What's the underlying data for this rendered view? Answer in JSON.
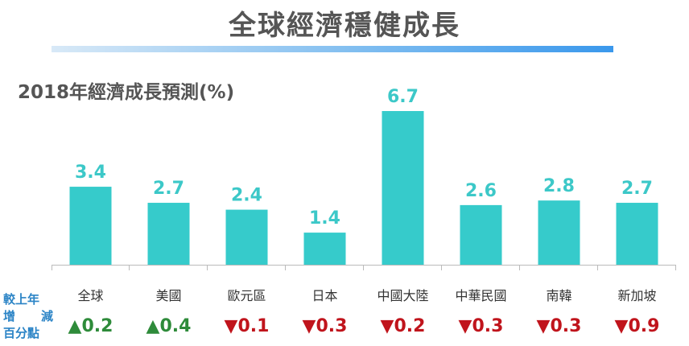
{
  "title": "全球經濟穩健成長",
  "side_label": {
    "line1": "較上年",
    "line2a": "增",
    "line2b": "減",
    "line3": "百分點"
  },
  "colors": {
    "bar": "#36cbcb",
    "value": "#3cc8c8",
    "up": "#2e8b3a",
    "down": "#c0141c",
    "side_label": "#2b84c6"
  },
  "chart_data": {
    "type": "bar",
    "title": "2018年經濟成長預測(%)",
    "categories": [
      "全球",
      "美國",
      "歐元區",
      "日本",
      "中國大陸",
      "中華民國",
      "南韓",
      "新加坡"
    ],
    "values": [
      3.4,
      2.7,
      2.4,
      1.4,
      6.7,
      2.6,
      2.8,
      2.7
    ],
    "value_labels": [
      "3.4",
      "2.7",
      "2.4",
      "1.4",
      "6.7",
      "2.6",
      "2.8",
      "2.7"
    ],
    "change_vs_last_year": [
      0.2,
      0.4,
      -0.1,
      -0.3,
      -0.2,
      -0.3,
      -0.3,
      -0.9
    ],
    "change_labels": [
      "▲0.2",
      "▲0.4",
      "▼0.1",
      "▼0.3",
      "▼0.2",
      "▼0.3",
      "▼0.3",
      "▼0.9"
    ],
    "ylim": [
      0,
      7
    ],
    "grid": false,
    "legend": "none"
  }
}
